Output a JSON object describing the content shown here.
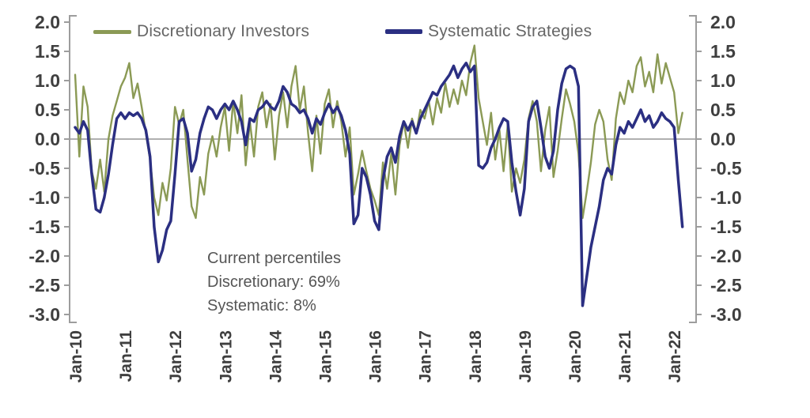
{
  "legend": {
    "discretionary_label": "Discretionary Investors",
    "systematic_label": "Systematic Strategies"
  },
  "annotation": {
    "line1": "Current percentiles",
    "line2": "Discretionary: 69%",
    "line3": "Systematic: 8%"
  },
  "colors": {
    "discretionary": "#8b9a55",
    "systematic": "#2b2f82",
    "axis": "#9d9d9d",
    "zero_line": "#b0b0b0",
    "tick_text": "#3f3f3f",
    "legend_text": "#666666",
    "annotation_text": "#555555"
  },
  "chart_data": {
    "type": "line",
    "title": "",
    "xlabel": "",
    "ylabel": "",
    "ylim": [
      -3.0,
      2.0
    ],
    "grid": "zero-line-only",
    "legend_position": "top",
    "x_start": "Jan-2010",
    "x_end": "Mar-2022",
    "frequency": "monthly",
    "x_tick_labels": [
      "Jan-10",
      "Jan-11",
      "Jan-12",
      "Jan-13",
      "Jan-14",
      "Jan-15",
      "Jan-16",
      "Jan-17",
      "Jan-18",
      "Jan-19",
      "Jan-20",
      "Jan-21",
      "Jan-22"
    ],
    "y_ticks": [
      2.0,
      1.5,
      1.0,
      0.5,
      0.0,
      -0.5,
      -1.0,
      -1.5,
      -2.0,
      -2.5,
      -3.0
    ],
    "y_tick_labels": [
      "2.0",
      "1.5",
      "1.0",
      "0.5",
      "0.0",
      "-0.5",
      "-1.0",
      "-1.5",
      "-2.0",
      "-2.5",
      "-3.0"
    ],
    "dual_axis": true,
    "current_percentiles": {
      "discretionary": "69%",
      "systematic": "8%"
    },
    "series": [
      {
        "name": "Discretionary Investors",
        "color": "#8b9a55",
        "values": [
          1.1,
          -0.3,
          0.9,
          0.55,
          -0.55,
          -0.85,
          -0.35,
          -0.9,
          0.0,
          0.4,
          0.65,
          0.9,
          1.05,
          1.3,
          0.7,
          0.95,
          0.55,
          0.1,
          -0.35,
          -1.0,
          -1.3,
          -0.75,
          -1.05,
          -0.5,
          0.55,
          0.25,
          0.5,
          -0.35,
          -1.15,
          -1.35,
          -0.65,
          -0.95,
          -0.25,
          0.05,
          -0.3,
          0.2,
          0.55,
          -0.2,
          0.65,
          0.1,
          0.75,
          -0.45,
          0.3,
          -0.3,
          0.55,
          0.8,
          0.2,
          0.6,
          -0.35,
          0.4,
          0.8,
          0.2,
          0.9,
          1.25,
          0.5,
          0.9,
          0.1,
          -0.55,
          0.4,
          -0.25,
          0.6,
          0.85,
          0.2,
          0.65,
          0.3,
          -0.3,
          0.2,
          -0.95,
          -0.6,
          -0.2,
          -0.55,
          -0.85,
          -1.05,
          -1.3,
          -0.4,
          -0.85,
          -0.25,
          -0.95,
          -0.1,
          0.3,
          -0.15,
          0.35,
          0.1,
          0.5,
          0.35,
          0.65,
          0.25,
          0.7,
          0.45,
          0.95,
          0.55,
          0.85,
          0.6,
          1.0,
          0.75,
          1.3,
          1.6,
          0.7,
          0.3,
          -0.1,
          0.45,
          -0.35,
          0.15,
          -0.55,
          0.25,
          -0.9,
          -0.5,
          -0.75,
          -0.35,
          0.35,
          0.65,
          0.3,
          -0.55,
          0.15,
          0.55,
          -0.65,
          -0.2,
          0.35,
          0.85,
          0.6,
          0.3,
          -0.25,
          -1.35,
          -0.9,
          -0.4,
          0.25,
          0.5,
          0.3,
          -0.35,
          -0.7,
          0.35,
          0.8,
          0.6,
          1.0,
          0.8,
          1.25,
          1.4,
          0.9,
          1.15,
          0.8,
          1.45,
          0.95,
          1.3,
          1.05,
          0.8,
          0.1,
          0.45
        ]
      },
      {
        "name": "Systematic Strategies",
        "color": "#2b2f82",
        "values": [
          0.2,
          0.1,
          0.3,
          0.15,
          -0.6,
          -1.2,
          -1.25,
          -1.0,
          -0.6,
          -0.1,
          0.35,
          0.45,
          0.35,
          0.45,
          0.4,
          0.45,
          0.35,
          0.15,
          -0.3,
          -1.5,
          -2.1,
          -1.9,
          -1.55,
          -1.4,
          -0.6,
          0.3,
          0.35,
          0.1,
          -0.55,
          -0.35,
          0.1,
          0.35,
          0.55,
          0.5,
          0.35,
          0.5,
          0.6,
          0.5,
          0.65,
          0.5,
          0.3,
          -0.1,
          0.35,
          0.3,
          0.5,
          0.55,
          0.65,
          0.55,
          0.5,
          0.65,
          0.9,
          0.8,
          0.6,
          0.55,
          0.45,
          0.5,
          0.35,
          0.1,
          0.35,
          0.25,
          0.45,
          0.6,
          0.45,
          0.55,
          0.4,
          0.15,
          -0.25,
          -1.45,
          -1.3,
          -0.5,
          -0.65,
          -0.95,
          -1.4,
          -1.55,
          -0.7,
          -0.3,
          -0.15,
          -0.4,
          0.05,
          0.3,
          0.15,
          0.3,
          0.1,
          0.35,
          0.5,
          0.65,
          0.8,
          0.75,
          0.9,
          1.0,
          1.1,
          1.25,
          1.05,
          1.2,
          1.3,
          1.15,
          1.25,
          -0.45,
          -0.5,
          -0.4,
          -0.15,
          0.0,
          0.2,
          0.35,
          0.3,
          -0.4,
          -0.9,
          -1.3,
          -0.85,
          0.3,
          0.55,
          0.65,
          0.2,
          -0.3,
          -0.5,
          -0.2,
          0.5,
          0.95,
          1.2,
          1.25,
          1.2,
          0.9,
          -2.85,
          -2.35,
          -1.85,
          -1.5,
          -1.15,
          -0.7,
          -0.5,
          -0.6,
          -0.1,
          0.2,
          0.1,
          0.3,
          0.2,
          0.35,
          0.5,
          0.3,
          0.4,
          0.2,
          0.3,
          0.45,
          0.35,
          0.3,
          0.2,
          -0.7,
          -1.5
        ]
      }
    ]
  }
}
